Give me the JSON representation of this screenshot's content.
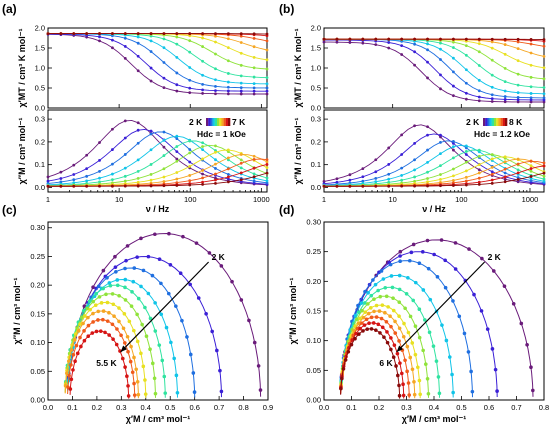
{
  "palette": [
    "#6a1b7a",
    "#3a1fd6",
    "#1f6fe0",
    "#10c4e8",
    "#2fe3a0",
    "#8fe33a",
    "#e8e020",
    "#f5a623",
    "#f05a1a",
    "#d61414",
    "#8a0a0a"
  ],
  "panels": [
    {
      "id": "a",
      "label": "(a)",
      "top": {
        "ylabel": "χ′MT / cm³ K mol⁻¹",
        "yticks": [
          "0.0",
          "0.5",
          "1.0",
          "1.5",
          "2.0"
        ],
        "ylim": [
          0,
          2.0
        ]
      },
      "bottom": {
        "ylabel": "χ″M / cm³ mol⁻¹",
        "yticks": [
          "0.0",
          "0.1",
          "0.2",
          "0.3"
        ],
        "ylim": [
          -0.02,
          0.34
        ]
      },
      "xlabel": "ν / Hz",
      "xticks": [
        "1",
        "10",
        "100",
        "1000"
      ],
      "xlim": [
        1,
        1200
      ],
      "legend": {
        "t_low": "2 K",
        "t_high": "7 K",
        "field_label": "Hdc = 1 kOe"
      }
    },
    {
      "id": "b",
      "label": "(b)",
      "top": {
        "ylabel": "χ′MT / cm³ K mol⁻¹",
        "yticks": [
          "0.0",
          "0.5",
          "1.0",
          "1.5",
          "2.0"
        ],
        "ylim": [
          0,
          2.0
        ]
      },
      "bottom": {
        "ylabel": "χ″M / cm³ mol⁻¹",
        "yticks": [
          "0.0",
          "0.1",
          "0.2",
          "0.3"
        ],
        "ylim": [
          -0.02,
          0.34
        ]
      },
      "xlabel": "ν / Hz",
      "xticks": [
        "1",
        "10",
        "100",
        "1000"
      ],
      "xlim": [
        1,
        1600
      ],
      "legend": {
        "t_low": "2 K",
        "t_high": "8 K",
        "field_label": "Hdc = 1.2 kOe"
      }
    },
    {
      "id": "c",
      "label": "(c)",
      "ylabel": "χ″M / cm³ mol⁻¹",
      "xlabel": "χ′M / cm³ mol⁻¹",
      "xticks": [
        "0.0",
        "0.1",
        "0.2",
        "0.3",
        "0.4",
        "0.5",
        "0.6",
        "0.7",
        "0.8",
        "0.9"
      ],
      "yticks": [
        "0.00",
        "0.05",
        "0.10",
        "0.15",
        "0.20",
        "0.25",
        "0.30"
      ],
      "xlim": [
        0,
        0.9
      ],
      "ylim": [
        0,
        0.31
      ],
      "arrow_start_label": "2 K",
      "arrow_end_label": "5.5 K"
    },
    {
      "id": "d",
      "label": "(d)",
      "ylabel": "χ″M / cm³ mol⁻¹",
      "xlabel": "χ′M / cm³ mol⁻¹",
      "xticks": [
        "0.0",
        "0.1",
        "0.2",
        "0.3",
        "0.4",
        "0.5",
        "0.6",
        "0.7",
        "0.8"
      ],
      "yticks": [
        "0.00",
        "0.05",
        "0.10",
        "0.15",
        "0.20",
        "0.25",
        "0.30"
      ],
      "xlim": [
        0,
        0.8
      ],
      "ylim": [
        0,
        0.3
      ],
      "arrow_start_label": "2 K",
      "arrow_end_label": "6 K"
    }
  ],
  "chart_data": [
    {
      "type": "line",
      "panel": "a-top",
      "x_scale": "log",
      "x_range": [
        1,
        1000
      ],
      "chi_s": [
        0.35,
        0.42,
        0.5,
        0.6,
        0.75,
        0.95,
        1.15,
        1.35,
        1.55,
        1.7,
        1.78
      ],
      "chi_t": [
        1.85,
        1.85,
        1.86,
        1.86,
        1.86,
        1.86,
        1.86,
        1.86,
        1.86,
        1.86,
        1.86
      ],
      "peak_freq_hz": [
        14,
        22,
        38,
        65,
        110,
        190,
        330,
        560,
        950,
        1600,
        2800
      ]
    },
    {
      "type": "line",
      "panel": "a-bottom",
      "x_scale": "log",
      "x_range": [
        1,
        1000
      ],
      "peak_heights": [
        0.29,
        0.25,
        0.24,
        0.22,
        0.2,
        0.18,
        0.16,
        0.14,
        0.12,
        0.1,
        0.08
      ],
      "peak_freq_hz": [
        14,
        22,
        38,
        65,
        110,
        190,
        330,
        560,
        950,
        1600,
        2800
      ]
    },
    {
      "type": "line",
      "panel": "b-top",
      "x_scale": "log",
      "x_range": [
        1,
        1500
      ],
      "chi_s": [
        0.15,
        0.2,
        0.25,
        0.35,
        0.5,
        0.7,
        0.95,
        1.2,
        1.45,
        1.6,
        1.68
      ],
      "chi_t": [
        1.65,
        1.7,
        1.72,
        1.72,
        1.72,
        1.72,
        1.72,
        1.72,
        1.72,
        1.72,
        1.72
      ],
      "peak_freq_hz": [
        25,
        40,
        65,
        100,
        160,
        260,
        420,
        700,
        1100,
        1800,
        3000
      ]
    },
    {
      "type": "line",
      "panel": "b-bottom",
      "x_scale": "log",
      "x_range": [
        1,
        1500
      ],
      "peak_heights": [
        0.27,
        0.23,
        0.2,
        0.18,
        0.16,
        0.14,
        0.13,
        0.12,
        0.11,
        0.09,
        0.07
      ],
      "peak_freq_hz": [
        25,
        40,
        65,
        100,
        160,
        260,
        420,
        700,
        1100,
        1800,
        3000
      ]
    },
    {
      "type": "scatter",
      "panel": "c",
      "x_range": [
        0,
        0.9
      ],
      "y_range": [
        0,
        0.31
      ],
      "arcs": [
        {
          "chi_s": 0.08,
          "chi_t": 0.87,
          "height": 0.29
        },
        {
          "chi_s": 0.08,
          "chi_t": 0.71,
          "height": 0.25
        },
        {
          "chi_s": 0.08,
          "chi_t": 0.6,
          "height": 0.23
        },
        {
          "chi_s": 0.08,
          "chi_t": 0.53,
          "height": 0.21
        },
        {
          "chi_s": 0.07,
          "chi_t": 0.48,
          "height": 0.2
        },
        {
          "chi_s": 0.07,
          "chi_t": 0.44,
          "height": 0.185
        },
        {
          "chi_s": 0.07,
          "chi_t": 0.4,
          "height": 0.17
        },
        {
          "chi_s": 0.07,
          "chi_t": 0.37,
          "height": 0.155
        },
        {
          "chi_s": 0.08,
          "chi_t": 0.355,
          "height": 0.14
        },
        {
          "chi_s": 0.09,
          "chi_t": 0.33,
          "height": 0.12
        }
      ]
    },
    {
      "type": "scatter",
      "panel": "d",
      "x_range": [
        0,
        0.8
      ],
      "y_range": [
        0,
        0.3
      ],
      "arcs": [
        {
          "chi_s": 0.06,
          "chi_t": 0.76,
          "height": 0.27
        },
        {
          "chi_s": 0.06,
          "chi_t": 0.63,
          "height": 0.25
        },
        {
          "chi_s": 0.06,
          "chi_t": 0.54,
          "height": 0.235
        },
        {
          "chi_s": 0.06,
          "chi_t": 0.47,
          "height": 0.21
        },
        {
          "chi_s": 0.06,
          "chi_t": 0.42,
          "height": 0.19
        },
        {
          "chi_s": 0.06,
          "chi_t": 0.38,
          "height": 0.175
        },
        {
          "chi_s": 0.06,
          "chi_t": 0.35,
          "height": 0.16
        },
        {
          "chi_s": 0.06,
          "chi_t": 0.33,
          "height": 0.15
        },
        {
          "chi_s": 0.06,
          "chi_t": 0.31,
          "height": 0.14
        },
        {
          "chi_s": 0.06,
          "chi_t": 0.29,
          "height": 0.13
        },
        {
          "chi_s": 0.06,
          "chi_t": 0.275,
          "height": 0.12
        }
      ]
    }
  ]
}
